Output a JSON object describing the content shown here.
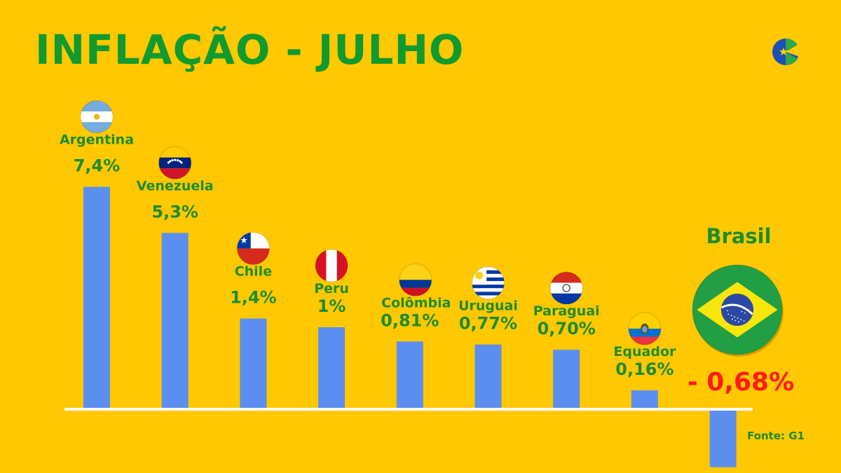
{
  "header": {
    "title": "INFLAÇÃO - JULHO"
  },
  "logo": {
    "icon": "globe-star-logo-icon"
  },
  "colors": {
    "background": "#FFC800",
    "title": "#119A2E",
    "bar": "#5B8EEF",
    "label": "#1E8C2E",
    "negative": "#FF1A1A",
    "baseline": "#FFFFFF"
  },
  "chart_data": {
    "type": "bar",
    "title": "INFLAÇÃO - JULHO",
    "categories": [
      "Argentina",
      "Venezuela",
      "Chile",
      "Peru",
      "Colômbia",
      "Uruguai",
      "Paraguai",
      "Equador",
      "Brasil"
    ],
    "values": [
      7.4,
      5.3,
      1.4,
      1,
      0.81,
      0.77,
      0.7,
      0.16,
      -0.68
    ],
    "value_labels": [
      "7,4%",
      "5,3%",
      "1,4%",
      "1%",
      "0,81%",
      "0,77%",
      "0,70%",
      "0,16%",
      "- 0,68%"
    ],
    "flags": [
      "argentina-flag-icon",
      "venezuela-flag-icon",
      "chile-flag-icon",
      "peru-flag-icon",
      "colombia-flag-icon",
      "uruguay-flag-icon",
      "paraguay-flag-icon",
      "ecuador-flag-icon",
      "brazil-flag-icon"
    ],
    "grid": false,
    "legend": "none"
  },
  "footer": {
    "source": "Fonte: G1"
  }
}
